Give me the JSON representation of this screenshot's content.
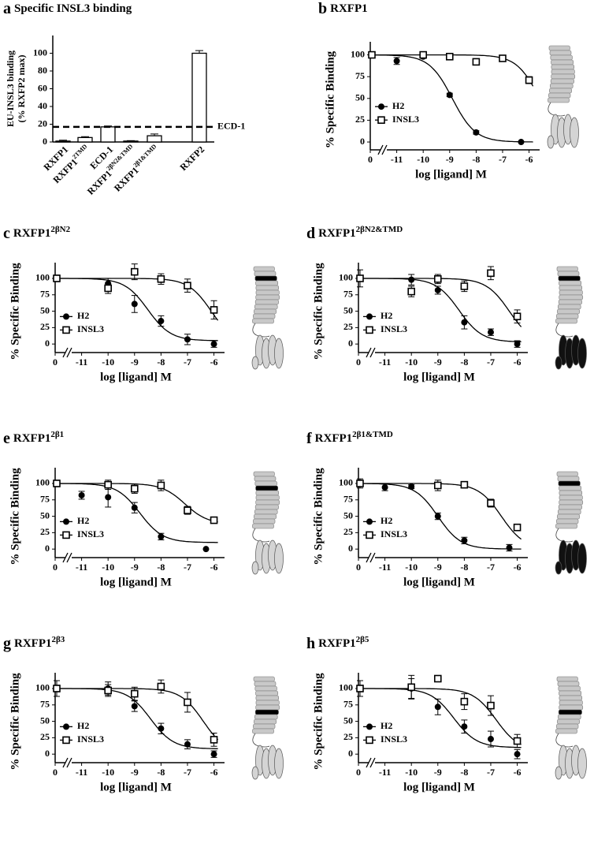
{
  "chart_data": [
    {
      "type": "bar",
      "letter": "a",
      "title": "Specific INSL3 binding",
      "ylabel": [
        "EU-INSL3 binding",
        "(% RXFP2 max)"
      ],
      "categories": [
        {
          "name": "RXFP1"
        },
        {
          "name": "RXFP1",
          "sup": "2TMD"
        },
        {
          "name": "ECD-1"
        },
        {
          "name": "RXFP1",
          "sup": "2βN2&TMD"
        },
        {
          "name": "RXFP1",
          "sup": "2β1&TMD"
        },
        {
          "name": "RXFP2"
        }
      ],
      "values": [
        1,
        5,
        17,
        1,
        7,
        100
      ],
      "errors": [
        1,
        1,
        1,
        0.5,
        2,
        3
      ],
      "color": "#ffffff",
      "ylim": [
        0,
        120
      ],
      "yticks": [
        0,
        20,
        40,
        60,
        80,
        100
      ],
      "reference_line": {
        "value": 17,
        "label": "ECD-1"
      }
    },
    {
      "type": "dose-response",
      "letter": "b",
      "title": "RXFP1",
      "xlabel": "log [ligand] M",
      "ylabel": "% Specific Binding",
      "xlim": [
        -12,
        -5.6
      ],
      "x_control": 0,
      "xticks": [
        -11,
        -10,
        -9,
        -8,
        -7,
        -6
      ],
      "ylim": [
        -9,
        115
      ],
      "yticks": [
        0,
        25,
        50,
        75,
        100
      ],
      "series": [
        {
          "name": "H2",
          "marker": "circle",
          "color": "#000000",
          "x": [
            0,
            -11,
            -10,
            -9,
            -8,
            -6.3
          ],
          "values": [
            100,
            93,
            98,
            54,
            11,
            0
          ],
          "errors": [
            2,
            4,
            2,
            2,
            2,
            null
          ],
          "fit": {
            "top": 100,
            "bottom": 0,
            "log_ic50": -8.9
          }
        },
        {
          "name": "INSL3",
          "marker": "square",
          "color": "#000000",
          "x": [
            0,
            -10,
            -9,
            -8,
            -7,
            -6
          ],
          "values": [
            100,
            100,
            98,
            92,
            96,
            71
          ],
          "errors": [
            2,
            3,
            2,
            2,
            2,
            4
          ],
          "fit": {
            "top": 100,
            "bottom": 0,
            "log_ic50": -5.6
          }
        }
      ]
    },
    {
      "type": "dose-response",
      "letter": "c",
      "title": "RXFP1",
      "title_sup": "2βN2",
      "xlabel": "log [ligand] M",
      "ylabel": "% Specific Binding",
      "xlim": [
        -12,
        -5.6
      ],
      "x_control": 0,
      "xticks": [
        -11,
        -10,
        -9,
        -8,
        -7,
        -6
      ],
      "ylim": [
        -13,
        124
      ],
      "yticks": [
        0,
        25,
        50,
        75,
        100
      ],
      "series": [
        {
          "name": "H2",
          "marker": "circle",
          "color": "#000000",
          "x": [
            0,
            -10,
            -9,
            -8,
            -7,
            -6
          ],
          "values": [
            100,
            92,
            61,
            35,
            7,
            0
          ],
          "errors": [
            5,
            8,
            13,
            8,
            8,
            5
          ],
          "fit": {
            "top": 100,
            "bottom": 5,
            "log_ic50": -8.5
          }
        },
        {
          "name": "INSL3",
          "marker": "square",
          "color": "#000000",
          "x": [
            0,
            -10,
            -9,
            -8,
            -7,
            -6
          ],
          "values": [
            100,
            85,
            110,
            99,
            89,
            52
          ],
          "errors": [
            3,
            8,
            12,
            8,
            10,
            14
          ],
          "fit": {
            "top": 100,
            "bottom": 0,
            "log_ic50": -6.1
          }
        }
      ]
    },
    {
      "type": "dose-response",
      "letter": "d",
      "title": "RXFP1",
      "title_sup": "2βN2&TMD",
      "xlabel": "log [ligand] M",
      "ylabel": "% Specific Binding",
      "xlim": [
        -12,
        -5.6
      ],
      "x_control": 0,
      "xticks": [
        -11,
        -10,
        -9,
        -8,
        -7,
        -6
      ],
      "ylim": [
        -13,
        124
      ],
      "yticks": [
        0,
        25,
        50,
        75,
        100
      ],
      "series": [
        {
          "name": "H2",
          "marker": "circle",
          "color": "#000000",
          "x": [
            0,
            -10,
            -9,
            -8,
            -7,
            -6
          ],
          "values": [
            100,
            98,
            82,
            33,
            18,
            0
          ],
          "errors": [
            13,
            8,
            6,
            10,
            5,
            5
          ],
          "fit": {
            "top": 100,
            "bottom": 3,
            "log_ic50": -8.2
          }
        },
        {
          "name": "INSL3",
          "marker": "square",
          "color": "#000000",
          "x": [
            0,
            -10,
            -9,
            -8,
            -7,
            -6
          ],
          "values": [
            100,
            80,
            99,
            88,
            108,
            42
          ],
          "errors": [
            3,
            8,
            7,
            8,
            10,
            10
          ],
          "fit": {
            "top": 100,
            "bottom": 0,
            "log_ic50": -6.3
          }
        }
      ]
    },
    {
      "type": "dose-response",
      "letter": "e",
      "title": "RXFP1",
      "title_sup": "2β1",
      "xlabel": "log [ligand] M",
      "ylabel": "% Specific Binding",
      "xlim": [
        -12,
        -5.6
      ],
      "x_control": 0,
      "xticks": [
        -11,
        -10,
        -9,
        -8,
        -7,
        -6
      ],
      "ylim": [
        -13,
        124
      ],
      "yticks": [
        0,
        25,
        50,
        75,
        100
      ],
      "series": [
        {
          "name": "H2",
          "marker": "circle",
          "color": "#000000",
          "x": [
            0,
            -11,
            -10,
            -9,
            -8,
            -6.3
          ],
          "values": [
            100,
            82,
            79,
            63,
            19,
            0
          ],
          "errors": [
            5,
            6,
            15,
            8,
            5,
            null
          ],
          "fit": {
            "top": 100,
            "bottom": 10,
            "log_ic50": -8.8
          }
        },
        {
          "name": "INSL3",
          "marker": "square",
          "color": "#000000",
          "x": [
            0,
            -10,
            -9,
            -8,
            -7,
            -6
          ],
          "values": [
            100,
            98,
            92,
            97,
            59,
            44
          ],
          "errors": [
            4,
            7,
            7,
            8,
            6,
            4
          ],
          "fit": {
            "top": 100,
            "bottom": 38,
            "log_ic50": -7.1
          }
        }
      ]
    },
    {
      "type": "dose-response",
      "letter": "f",
      "title": "RXFP1",
      "title_sup": "2β1&TMD",
      "xlabel": "log [ligand] M",
      "ylabel": "% Specific Binding",
      "xlim": [
        -12,
        -5.6
      ],
      "x_control": 0,
      "xticks": [
        -11,
        -10,
        -9,
        -8,
        -7,
        -6
      ],
      "ylim": [
        -13,
        124
      ],
      "yticks": [
        0,
        25,
        50,
        75,
        100
      ],
      "series": [
        {
          "name": "H2",
          "marker": "circle",
          "color": "#000000",
          "x": [
            0,
            -11,
            -10,
            -9,
            -8,
            -6.3
          ],
          "values": [
            100,
            94,
            95,
            50,
            13,
            2
          ],
          "errors": [
            7,
            5,
            3,
            5,
            5,
            5
          ],
          "fit": {
            "top": 100,
            "bottom": 0,
            "log_ic50": -9.0
          }
        },
        {
          "name": "INSL3",
          "marker": "square",
          "color": "#000000",
          "x": [
            0,
            -9,
            -8,
            -7,
            -6
          ],
          "values": [
            100,
            97,
            98,
            70,
            33
          ],
          "errors": [
            4,
            8,
            4,
            6,
            3
          ],
          "fit": {
            "top": 100,
            "bottom": 0,
            "log_ic50": -6.6
          }
        }
      ]
    },
    {
      "type": "dose-response",
      "letter": "g",
      "title": "RXFP1",
      "title_sup": "2β3",
      "xlabel": "log [ligand] M",
      "ylabel": "% Specific Binding",
      "xlim": [
        -12,
        -5.6
      ],
      "x_control": 0,
      "xticks": [
        -11,
        -10,
        -9,
        -8,
        -7,
        -6
      ],
      "ylim": [
        -13,
        124
      ],
      "yticks": [
        0,
        25,
        50,
        75,
        100
      ],
      "series": [
        {
          "name": "H2",
          "marker": "circle",
          "color": "#000000",
          "x": [
            0,
            -10,
            -9,
            -8,
            -7,
            -6
          ],
          "values": [
            100,
            100,
            73,
            39,
            15,
            0
          ],
          "errors": [
            12,
            10,
            8,
            8,
            7,
            5
          ],
          "fit": {
            "top": 100,
            "bottom": 8,
            "log_ic50": -8.4
          }
        },
        {
          "name": "INSL3",
          "marker": "square",
          "color": "#000000",
          "x": [
            0,
            -10,
            -9,
            -8,
            -7,
            -6
          ],
          "values": [
            100,
            97,
            92,
            103,
            79,
            22
          ],
          "errors": [
            5,
            9,
            10,
            10,
            15,
            10
          ],
          "fit": {
            "top": 100,
            "bottom": 0,
            "log_ic50": -6.4
          }
        }
      ]
    },
    {
      "type": "dose-response",
      "letter": "h",
      "title": "RXFP1",
      "title_sup": "2β5",
      "xlabel": "log [ligand] M",
      "ylabel": "% Specific Binding",
      "xlim": [
        -12,
        -5.6
      ],
      "x_control": 0,
      "xticks": [
        -11,
        -10,
        -9,
        -8,
        -7,
        -6
      ],
      "ylim": [
        -13,
        124
      ],
      "yticks": [
        0,
        25,
        50,
        75,
        100
      ],
      "series": [
        {
          "name": "H2",
          "marker": "circle",
          "color": "#000000",
          "x": [
            0,
            -10,
            -9,
            -8,
            -7,
            -6
          ],
          "values": [
            100,
            100,
            72,
            42,
            23,
            0
          ],
          "errors": [
            12,
            15,
            12,
            10,
            12,
            7
          ],
          "fit": {
            "top": 100,
            "bottom": 10,
            "log_ic50": -8.4
          }
        },
        {
          "name": "INSL3",
          "marker": "square",
          "color": "#000000",
          "x": [
            0,
            -10,
            -9,
            -8,
            -7,
            -6
          ],
          "values": [
            100,
            102,
            115,
            80,
            74,
            20
          ],
          "errors": [
            5,
            18,
            null,
            12,
            15,
            10
          ],
          "fit": {
            "top": 100,
            "bottom": 5,
            "log_ic50": -6.8
          }
        }
      ]
    }
  ]
}
